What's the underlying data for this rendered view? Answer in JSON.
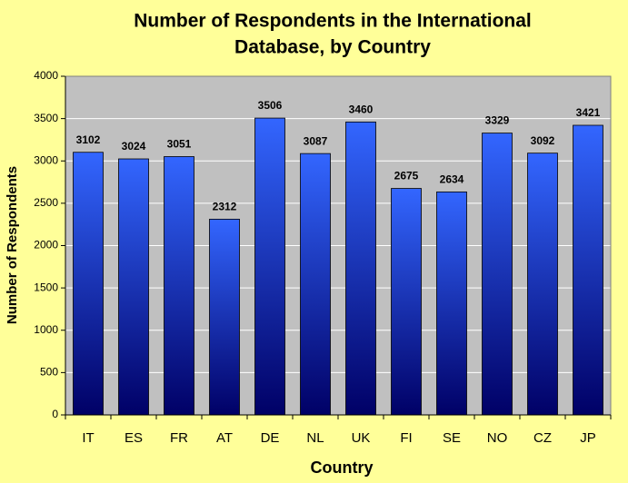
{
  "chart_data": {
    "type": "bar",
    "title": [
      "Number of Respondents in the International",
      "Database, by Country"
    ],
    "x_label": "Country",
    "y_label": "Number of Respondents",
    "categories": [
      "IT",
      "ES",
      "FR",
      "AT",
      "DE",
      "NL",
      "UK",
      "FI",
      "SE",
      "NO",
      "CZ",
      "JP"
    ],
    "values": [
      3102,
      3024,
      3051,
      2312,
      3506,
      3087,
      3460,
      2675,
      2634,
      3329,
      3092,
      3421
    ],
    "color": "#3366ff",
    "ylim": [
      0,
      4000
    ],
    "yticks": [
      0,
      500,
      1000,
      1500,
      2000,
      2500,
      3000,
      3500,
      4000
    ],
    "grid": true
  }
}
